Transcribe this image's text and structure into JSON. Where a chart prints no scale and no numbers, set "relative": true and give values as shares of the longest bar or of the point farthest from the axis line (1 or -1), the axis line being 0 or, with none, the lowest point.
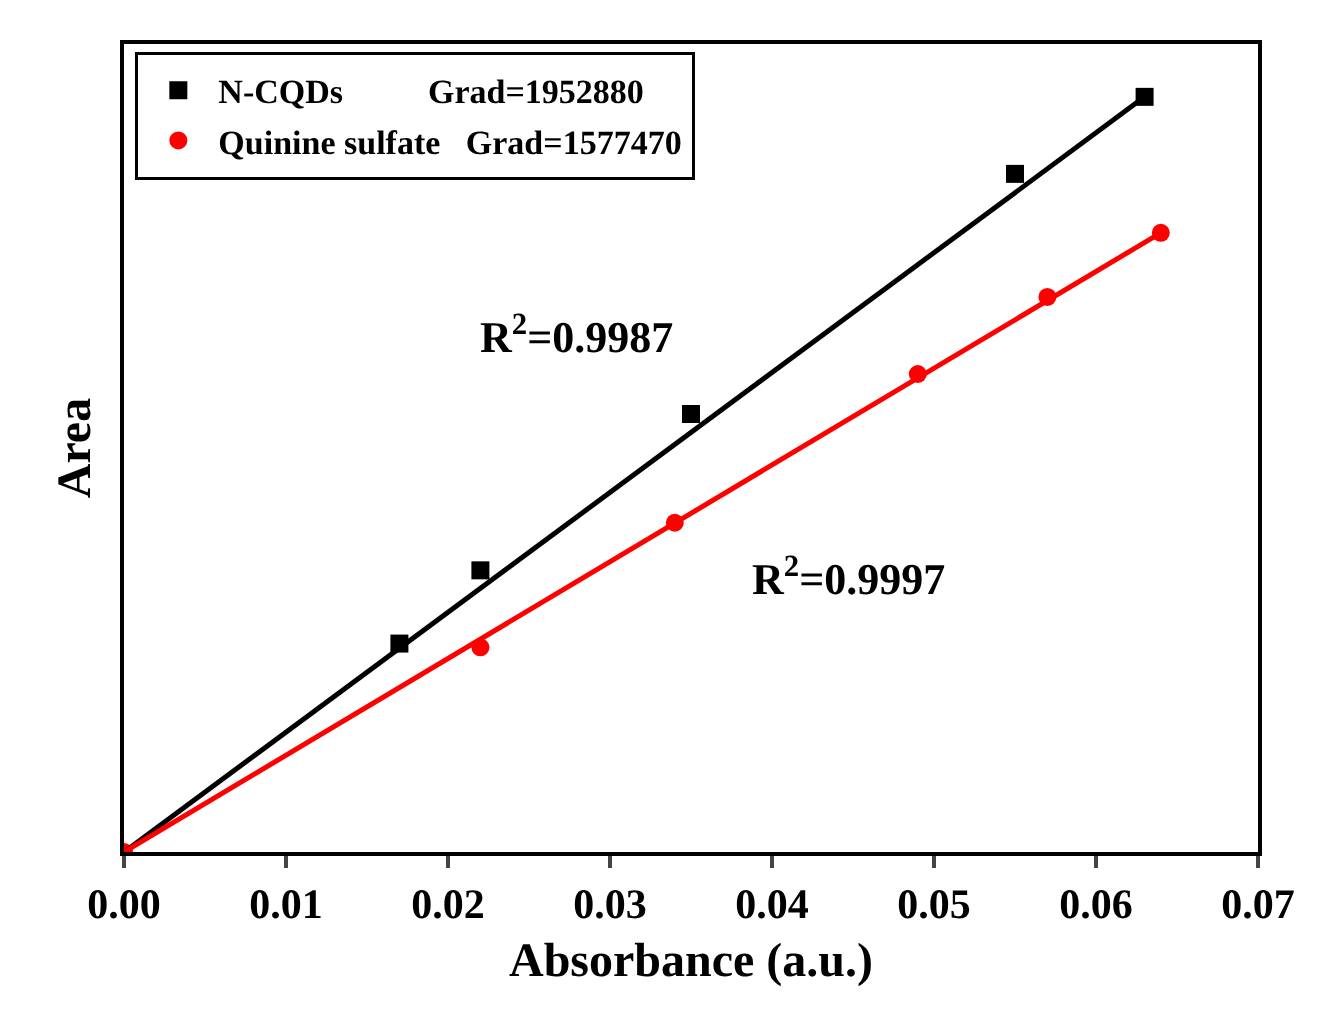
{
  "chart_data": {
    "type": "scatter",
    "xlabel": "Absorbance (a.u.)",
    "ylabel": "Area",
    "relative": true,
    "xlim": [
      0,
      0.07
    ],
    "xticks": [
      {
        "value": 0,
        "label": "0.00"
      },
      {
        "value": 0.01,
        "label": "0.01"
      },
      {
        "value": 0.02,
        "label": "0.02"
      },
      {
        "value": 0.03,
        "label": "0.03"
      },
      {
        "value": 0.04,
        "label": "0.04"
      },
      {
        "value": 0.05,
        "label": "0.05"
      },
      {
        "value": 0.06,
        "label": "0.06"
      },
      {
        "value": 0.07,
        "label": "0.07"
      }
    ],
    "grid": false,
    "legend": "top left",
    "tick_labels": "x",
    "series": [
      {
        "name": "N-CQDs          Grad=1952880",
        "color": "#000000",
        "marker": "square",
        "x": [
          0.017,
          0.022,
          0.035,
          0.055,
          0.063
        ],
        "values": [
          0.276,
          0.373,
          0.58,
          0.898,
          1
        ]
      },
      {
        "name": "Quinine sulfate   Grad=1577470",
        "color": "#ff0000",
        "marker": "circle",
        "x": [
          0,
          0.022,
          0.034,
          0.049,
          0.057,
          0.064
        ],
        "values": [
          0,
          0.271,
          0.436,
          0.633,
          0.735,
          0.82
        ]
      },
      {
        "type": "line",
        "color": "#000000",
        "x": [
          0,
          0.063
        ],
        "values": [
          0,
          1
        ]
      },
      {
        "type": "line",
        "color": "#ff0000",
        "x": [
          0,
          0.064
        ],
        "values": [
          0,
          0.82
        ]
      }
    ],
    "annotations": [
      "R$^{2}$=0.9987",
      "R$^{2}$=0.9997"
    ]
  }
}
